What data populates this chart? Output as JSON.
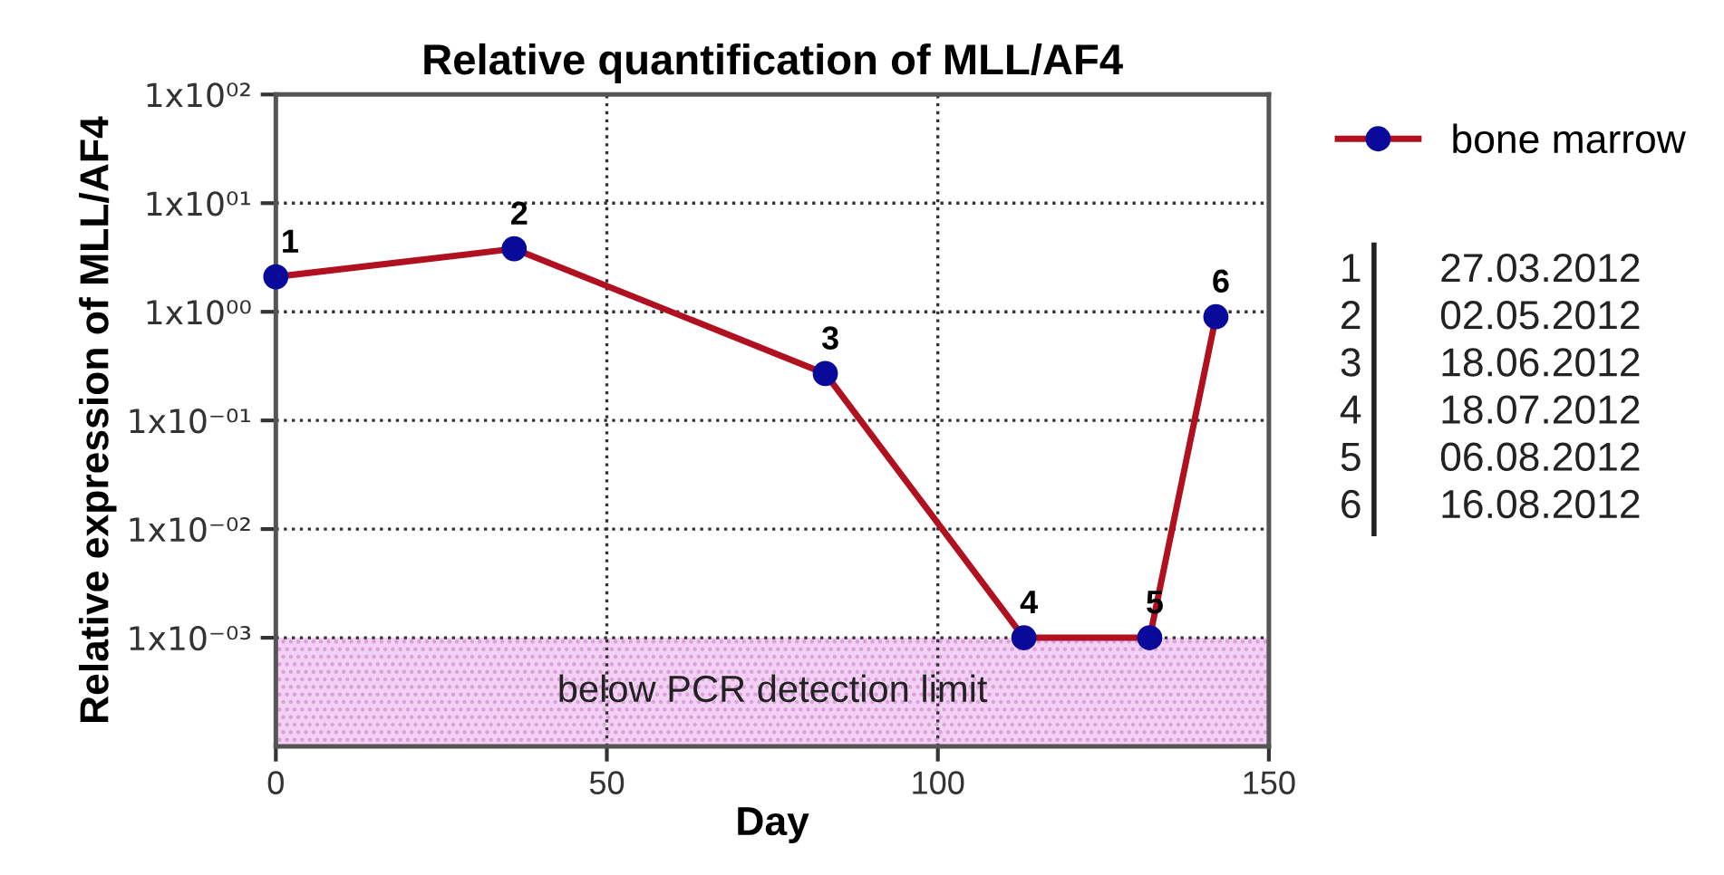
{
  "chart_data": {
    "type": "line",
    "title": "Relative quantification of MLL/AF4",
    "xlabel": "Day",
    "ylabel": "Relative expression of MLL/AF4",
    "x": [
      0,
      36,
      83,
      113,
      132,
      142
    ],
    "series": [
      {
        "name": "bone marrow",
        "color": "#b01020",
        "values": [
          2.1,
          3.8,
          0.27,
          0.001,
          0.001,
          0.9
        ]
      }
    ],
    "marker": "circle",
    "line_style": "solid",
    "log": "y",
    "grid": true,
    "legend": "top right",
    "xlim": [
      0,
      150
    ],
    "xticks": [
      0,
      50,
      100,
      150
    ],
    "ylim": [
      0.0001,
      100
    ],
    "yticks": [
      {
        "value": 0.001,
        "label": "1x10⁻⁰³"
      },
      {
        "value": 0.01,
        "label": "1x10⁻⁰²"
      },
      {
        "value": 0.1,
        "label": "1x10⁻⁰¹"
      },
      {
        "value": 1,
        "label": "1x10⁰⁰"
      },
      {
        "value": 10,
        "label": "1x10⁰¹"
      },
      {
        "value": 100,
        "label": "1x10⁰²"
      }
    ],
    "bands": [
      {
        "axis": "y",
        "from": 0.0001,
        "to": 0.001,
        "label": "below PCR detection limit",
        "color": "#f4d0f4"
      }
    ],
    "annotations": [
      {
        "text": "1",
        "x": 0,
        "y": 2.1
      },
      {
        "text": "2",
        "x": 36,
        "y": 3.8
      },
      {
        "text": "3",
        "x": 83,
        "y": 0.27
      },
      {
        "text": "4",
        "x": 113,
        "y": 0.001
      },
      {
        "text": "5",
        "x": 132,
        "y": 0.001
      },
      {
        "text": "6",
        "x": 142,
        "y": 0.9
      },
      "1 27.03.2012",
      "2 02.05.2012",
      "3 18.06.2012",
      "4 18.07.2012",
      "5 06.08.2012",
      "6 16.08.2012"
    ]
  }
}
